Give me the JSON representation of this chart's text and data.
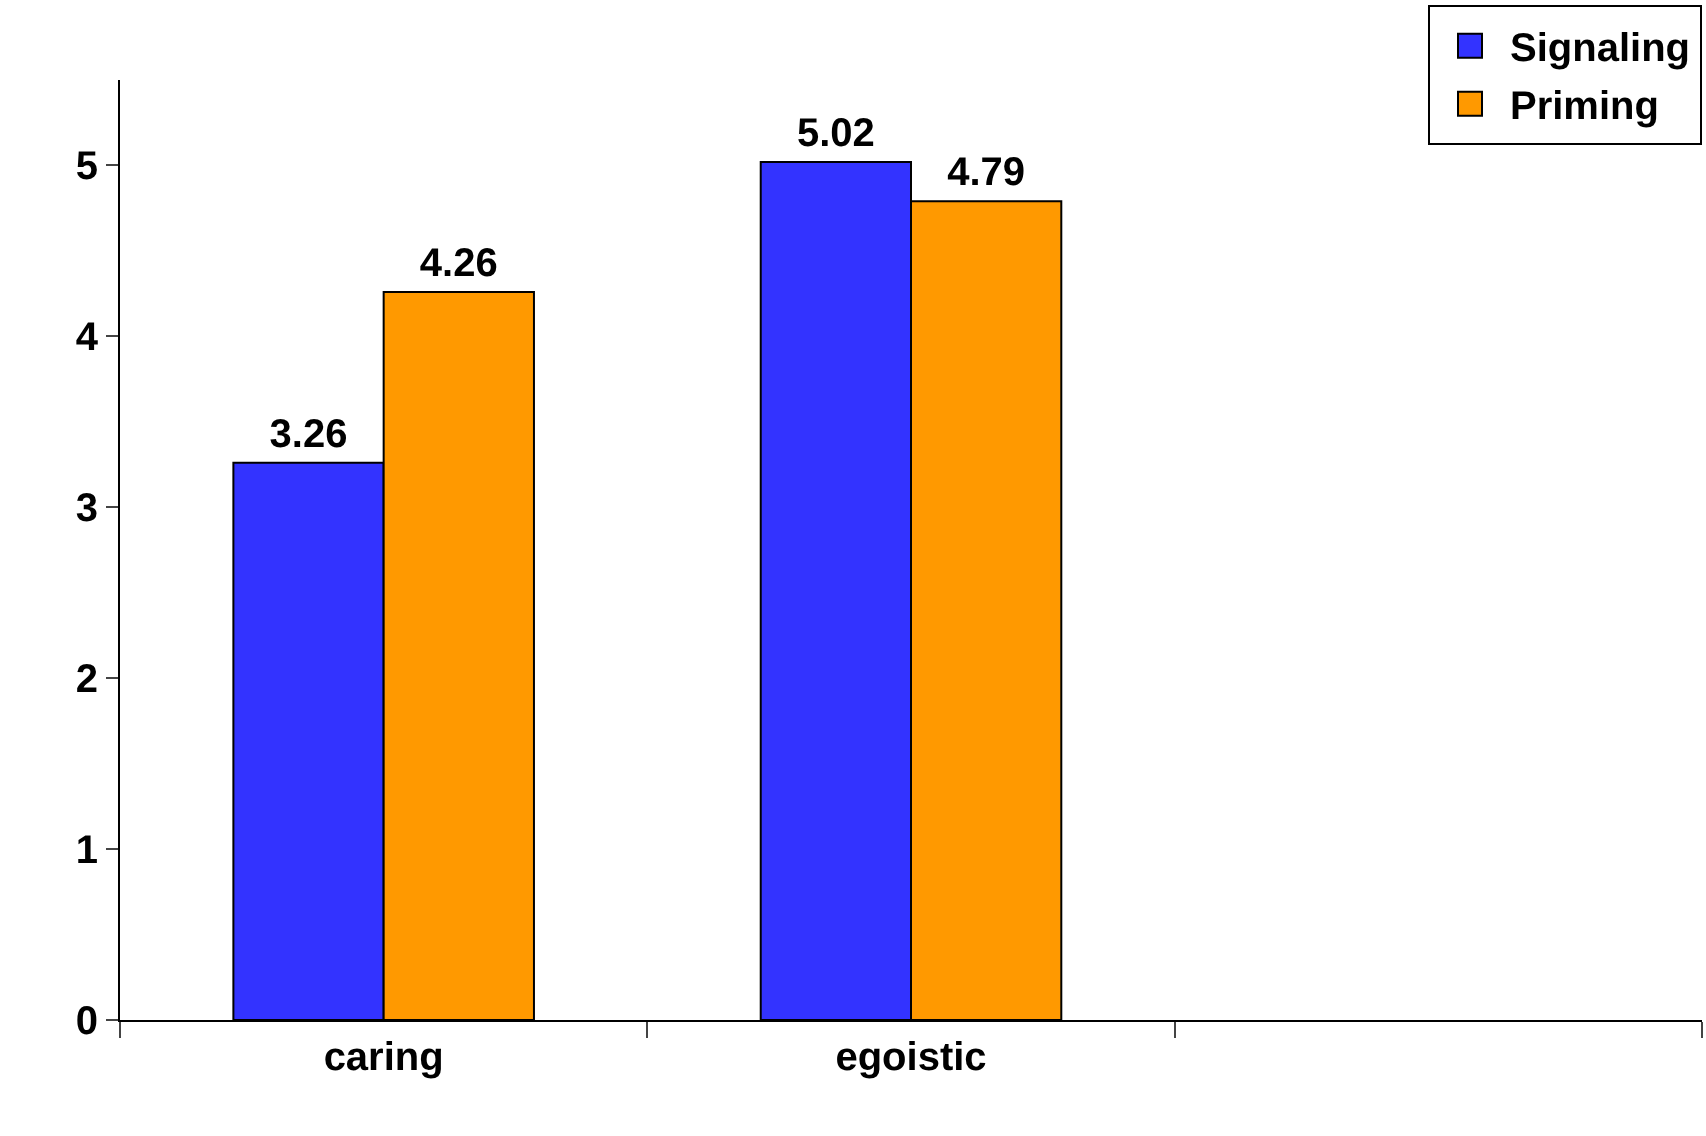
{
  "chart_data": {
    "type": "bar",
    "categories": [
      "caring",
      "egoistic",
      null
    ],
    "series": [
      {
        "name": "Signaling",
        "color": "#3333ff",
        "values": [
          3.26,
          5.02,
          null
        ]
      },
      {
        "name": "Priming",
        "color": "#ff9900",
        "values": [
          4.26,
          4.79,
          null
        ]
      }
    ],
    "ylim": [
      0,
      5.5
    ],
    "yticks": [
      0,
      1,
      2,
      3,
      4,
      5
    ],
    "legend": "top right",
    "data_labels": true
  }
}
